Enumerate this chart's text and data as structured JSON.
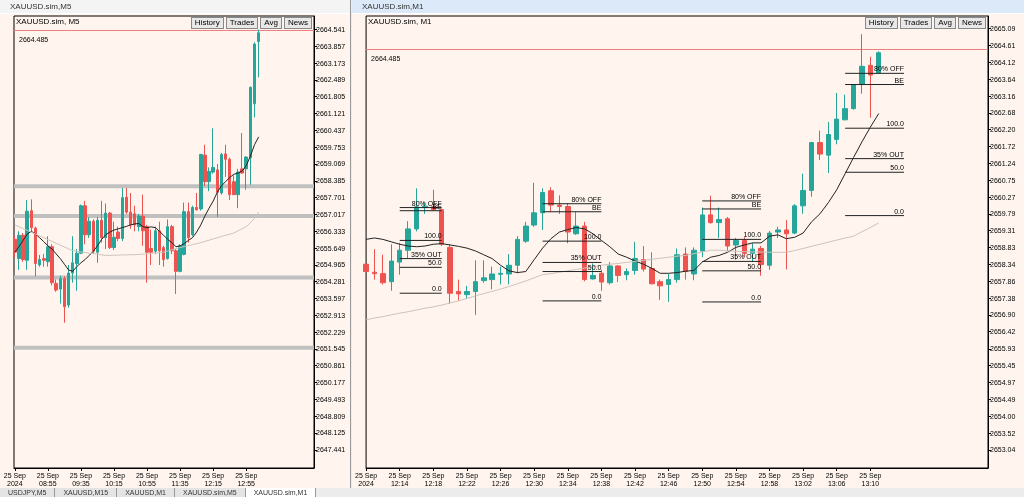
{
  "chart_data": [
    {
      "type": "candlestick",
      "title": "XAUUSD.sim,M5",
      "subtitle": "XAUUSD.sim, M5",
      "x": [
        "2024-09-25T08:15",
        "2024-09-25T08:20",
        "2024-09-25T08:25",
        "2024-09-25T08:30",
        "2024-09-25T08:35",
        "2024-09-25T08:40",
        "2024-09-25T08:45",
        "2024-09-25T08:50",
        "2024-09-25T08:55",
        "2024-09-25T09:00",
        "2024-09-25T09:05",
        "2024-09-25T09:10",
        "2024-09-25T09:15",
        "2024-09-25T09:20",
        "2024-09-25T09:25",
        "2024-09-25T09:30",
        "2024-09-25T09:35",
        "2024-09-25T09:40",
        "2024-09-25T09:45",
        "2024-09-25T09:50",
        "2024-09-25T09:55",
        "2024-09-25T10:00",
        "2024-09-25T10:05",
        "2024-09-25T10:10",
        "2024-09-25T10:15",
        "2024-09-25T10:20",
        "2024-09-25T10:25",
        "2024-09-25T10:30",
        "2024-09-25T10:35",
        "2024-09-25T10:40",
        "2024-09-25T10:45",
        "2024-09-25T10:50",
        "2024-09-25T10:55",
        "2024-09-25T11:00",
        "2024-09-25T11:05",
        "2024-09-25T11:10",
        "2024-09-25T11:15",
        "2024-09-25T11:20",
        "2024-09-25T11:25",
        "2024-09-25T11:30",
        "2024-09-25T11:35",
        "2024-09-25T11:40",
        "2024-09-25T11:45",
        "2024-09-25T11:50",
        "2024-09-25T11:55",
        "2024-09-25T12:00",
        "2024-09-25T12:05",
        "2024-09-25T12:10",
        "2024-09-25T12:15",
        "2024-09-25T12:20",
        "2024-09-25T12:25",
        "2024-09-25T12:30",
        "2024-09-25T12:35",
        "2024-09-25T12:40",
        "2024-09-25T12:45",
        "2024-09-25T12:50",
        "2024-09-25T12:55",
        "2024-09-25T13:00",
        "2024-09-25T13:05",
        "2024-09-25T13:10"
      ],
      "ohlc": [
        [
          2656.0,
          2656.13,
          2655.28,
          2655.48
        ],
        [
          2655.22,
          2656.33,
          2654.76,
          2656.17
        ],
        [
          2656.17,
          2656.26,
          2655.09,
          2655.18
        ],
        [
          2655.15,
          2657.6,
          2654.76,
          2657.15
        ],
        [
          2657.17,
          2657.63,
          2656.33,
          2656.48
        ],
        [
          2656.46,
          2656.52,
          2654.5,
          2655.02
        ],
        [
          2654.96,
          2655.37,
          2654.89,
          2655.18
        ],
        [
          2655.22,
          2655.41,
          2654.89,
          2655.15
        ],
        [
          2655.09,
          2656.13,
          2654.89,
          2655.7
        ],
        [
          2655.7,
          2655.8,
          2654.13,
          2654.24
        ],
        [
          2654.21,
          2654.37,
          2653.87,
          2653.94
        ],
        [
          2653.98,
          2654.53,
          2653.39,
          2654.4
        ],
        [
          2654.4,
          2654.5,
          2652.61,
          2653.26
        ],
        [
          2653.33,
          2654.96,
          2653.22,
          2654.63
        ],
        [
          2654.63,
          2656.13,
          2654.24,
          2655.05
        ],
        [
          2655.02,
          2655.61,
          2653.91,
          2655.44
        ],
        [
          2655.44,
          2657.42,
          2655.41,
          2657.37
        ],
        [
          2657.37,
          2657.57,
          2655.8,
          2656.19
        ],
        [
          2656.19,
          2656.91,
          2656.06,
          2656.74
        ],
        [
          2656.74,
          2656.82,
          2655.41,
          2655.52
        ],
        [
          2655.48,
          2656.91,
          2655.05,
          2656.78
        ],
        [
          2656.78,
          2657.57,
          2655.87,
          2656.07
        ],
        [
          2656.07,
          2657.46,
          2655.61,
          2657.07
        ],
        [
          2657.07,
          2657.11,
          2655.61,
          2655.67
        ],
        [
          2655.67,
          2656.72,
          2655.57,
          2656.09
        ],
        [
          2656.3,
          2656.52,
          2655.93,
          2656.04
        ],
        [
          2656.04,
          2658.09,
          2655.93,
          2657.7
        ],
        [
          2657.72,
          2658.09,
          2657.04,
          2657.11
        ],
        [
          2657.11,
          2657.89,
          2656.43,
          2656.59
        ],
        [
          2657.04,
          2657.37,
          2656.33,
          2656.59
        ],
        [
          2656.52,
          2657.04,
          2656.33,
          2656.95
        ],
        [
          2656.95,
          2657.82,
          2655.74,
          2656.35
        ],
        [
          2656.52,
          2656.59,
          2654.24,
          2655.48
        ],
        [
          2655.63,
          2656.39,
          2654.96,
          2655.48
        ],
        [
          2655.52,
          2656.52,
          2655.41,
          2656.35
        ],
        [
          2656.35,
          2656.72,
          2654.96,
          2655.54
        ],
        [
          2655.67,
          2655.74,
          2654.89,
          2655.18
        ],
        [
          2655.22,
          2656.81,
          2655.18,
          2656.52
        ],
        [
          2656.52,
          2656.59,
          2655.41,
          2655.54
        ],
        [
          2655.54,
          2655.61,
          2653.78,
          2654.7
        ],
        [
          2654.7,
          2655.8,
          2654.66,
          2655.74
        ],
        [
          2655.39,
          2657.5,
          2655.35,
          2657.13
        ],
        [
          2657.13,
          2657.5,
          2655.87,
          2656.07
        ],
        [
          2656.19,
          2657.37,
          2656.13,
          2657.3
        ],
        [
          2657.3,
          2657.89,
          2657.17,
          2657.21
        ],
        [
          2657.24,
          2659.48,
          2657.17,
          2659.46
        ],
        [
          2659.43,
          2659.85,
          2658.18,
          2658.35
        ],
        [
          2658.35,
          2658.93,
          2657.96,
          2658.77
        ],
        [
          2658.74,
          2660.52,
          2658.67,
          2658.93
        ],
        [
          2658.83,
          2659.07,
          2656.91,
          2657.92
        ],
        [
          2657.89,
          2659.52,
          2657.82,
          2659.46
        ],
        [
          2659.48,
          2659.85,
          2658.54,
          2659.26
        ],
        [
          2659.26,
          2659.33,
          2657.6,
          2657.82
        ],
        [
          2658.35,
          2658.61,
          2657.8,
          2657.82
        ],
        [
          2657.82,
          2658.87,
          2657.27,
          2658.74
        ],
        [
          2658.87,
          2660.33,
          2658.67,
          2658.7
        ],
        [
          2658.87,
          2659.39,
          2658.02,
          2659.35
        ],
        [
          2659.32,
          2662.22,
          2658.22,
          2662.19
        ],
        [
          2661.52,
          2664.02,
          2660.96,
          2663.95
        ],
        [
          2664.05,
          2664.54,
          2662.59,
          2664.41
        ]
      ],
      "series": [
        {
          "type": "line",
          "color": "#222222",
          "values": [
            2655.48,
            2655.7,
            2655.96,
            2656.22,
            2656.33,
            2656.22,
            2656.07,
            2655.91,
            2655.74,
            2655.61,
            2655.41,
            2655.22,
            2654.99,
            2654.76,
            2654.7,
            2654.89,
            2655.05,
            2655.18,
            2655.35,
            2655.52,
            2655.74,
            2656.0,
            2656.19,
            2656.3,
            2656.38,
            2656.43,
            2656.48,
            2656.53,
            2656.59,
            2656.63,
            2656.65,
            2656.52,
            2656.48,
            2656.51,
            2656.48,
            2656.33,
            2656.17,
            2656.0,
            2655.87,
            2655.7,
            2655.74,
            2655.83,
            2655.96,
            2656.07,
            2656.3,
            2656.59,
            2656.95,
            2657.27,
            2657.56,
            2657.92,
            2658.18,
            2658.35,
            2658.52,
            2658.65,
            2658.7,
            2658.78,
            2659.0,
            2659.39,
            2659.85,
            2660.17
          ]
        },
        {
          "type": "line",
          "color": "#cdc3bd",
          "values": [
            2656.59,
            2656.52,
            2656.44,
            2656.37,
            2656.29,
            2656.22,
            2656.14,
            2656.07,
            2655.99,
            2655.92,
            2655.84,
            2655.77,
            2655.69,
            2655.62,
            2655.54,
            2655.52,
            2655.49,
            2655.47,
            2655.44,
            2655.42,
            2655.4,
            2655.37,
            2655.35,
            2655.35,
            2655.36,
            2655.36,
            2655.37,
            2655.37,
            2655.38,
            2655.38,
            2655.39,
            2655.4,
            2655.42,
            2655.43,
            2655.45,
            2655.46,
            2655.48,
            2655.53,
            2655.58,
            2655.62,
            2655.67,
            2655.71,
            2655.75,
            2655.79,
            2655.83,
            2655.87,
            2655.92,
            2655.97,
            2656.02,
            2656.07,
            2656.12,
            2656.17,
            2656.21,
            2656.26,
            2656.35,
            2656.43,
            2656.52,
            2656.68,
            2656.85,
            2657.11
          ]
        }
      ],
      "xlim": [
        "2024-09-25T08:14",
        "2024-09-25T14:17"
      ],
      "xticks": [
        {
          "value": "2024-09-25T08:15",
          "label": "25 Sep 2024"
        },
        {
          "value": "2024-09-25T08:55",
          "label": "25 Sep 08:55"
        },
        {
          "value": "2024-09-25T09:35",
          "label": "25 Sep 09:35"
        },
        {
          "value": "2024-09-25T10:15",
          "label": "25 Sep 10:15"
        },
        {
          "value": "2024-09-25T10:55",
          "label": "25 Sep 10:55"
        },
        {
          "value": "2024-09-25T11:35",
          "label": "25 Sep 11:35"
        },
        {
          "value": "2024-09-25T12:15",
          "label": "25 Sep 12:15"
        },
        {
          "value": "2024-09-25T12:55",
          "label": "25 Sep 12:55"
        }
      ],
      "ylim": [
        2646.7,
        2665.09
      ],
      "yticks": [
        2647.441,
        2648.125,
        2648.809,
        2649.493,
        2650.177,
        2650.861,
        2651.545,
        2652.229,
        2652.913,
        2653.597,
        2654.281,
        2654.965,
        2655.649,
        2656.333,
        2657.017,
        2657.701,
        2658.385,
        2659.069,
        2659.753,
        2660.437,
        2661.121,
        2661.805,
        2662.489,
        2663.173,
        2663.857,
        2664.541
      ],
      "ref_lines": [
        {
          "axis": "y",
          "value": 2664.485,
          "label": "2664.485",
          "color": "#f08080"
        }
      ],
      "bands": [
        {
          "axis": "y",
          "from": 2658.08,
          "to": 2658.24,
          "color": "#c0c0c0"
        },
        {
          "axis": "y",
          "from": 2656.87,
          "to": 2657.03,
          "color": "#c0c0c0"
        },
        {
          "axis": "y",
          "from": 2654.37,
          "to": 2654.53,
          "color": "#c0c0c0"
        },
        {
          "axis": "y",
          "from": 2651.51,
          "to": 2651.67,
          "color": "#c0c0c0"
        }
      ],
      "annotations": [
        "History",
        "Trades",
        "Avg",
        "News"
      ],
      "grid": false,
      "marker": "none",
      "line_style": "solid"
    },
    {
      "type": "candlestick",
      "title": "XAUUSD.sim,M1",
      "subtitle": "XAUUSD.sim, M1",
      "x": [
        "2024-09-25T12:10",
        "2024-09-25T12:11",
        "2024-09-25T12:12",
        "2024-09-25T12:13",
        "2024-09-25T12:14",
        "2024-09-25T12:15",
        "2024-09-25T12:16",
        "2024-09-25T12:17",
        "2024-09-25T12:18",
        "2024-09-25T12:19",
        "2024-09-25T12:20",
        "2024-09-25T12:21",
        "2024-09-25T12:22",
        "2024-09-25T12:23",
        "2024-09-25T12:24",
        "2024-09-25T12:25",
        "2024-09-25T12:26",
        "2024-09-25T12:27",
        "2024-09-25T12:28",
        "2024-09-25T12:29",
        "2024-09-25T12:30",
        "2024-09-25T12:31",
        "2024-09-25T12:32",
        "2024-09-25T12:33",
        "2024-09-25T12:34",
        "2024-09-25T12:35",
        "2024-09-25T12:36",
        "2024-09-25T12:37",
        "2024-09-25T12:38",
        "2024-09-25T12:39",
        "2024-09-25T12:40",
        "2024-09-25T12:41",
        "2024-09-25T12:42",
        "2024-09-25T12:43",
        "2024-09-25T12:44",
        "2024-09-25T12:45",
        "2024-09-25T12:46",
        "2024-09-25T12:47",
        "2024-09-25T12:48",
        "2024-09-25T12:49",
        "2024-09-25T12:50",
        "2024-09-25T12:51",
        "2024-09-25T12:52",
        "2024-09-25T12:53",
        "2024-09-25T12:54",
        "2024-09-25T12:55",
        "2024-09-25T12:56",
        "2024-09-25T12:57",
        "2024-09-25T12:58",
        "2024-09-25T12:59",
        "2024-09-25T13:00",
        "2024-09-25T13:01",
        "2024-09-25T13:02",
        "2024-09-25T13:03",
        "2024-09-25T13:04",
        "2024-09-25T13:05",
        "2024-09-25T13:06",
        "2024-09-25T13:07",
        "2024-09-25T13:08",
        "2024-09-25T13:09",
        "2024-09-25T13:10",
        "2024-09-25T13:11"
      ],
      "ohlc": [
        [
          2658.35,
          2658.35,
          2658.14,
          2658.14
        ],
        [
          2658.12,
          2658.78,
          2657.91,
          2658.08
        ],
        [
          2658.08,
          2658.62,
          2657.77,
          2657.82
        ],
        [
          2657.85,
          2658.92,
          2657.59,
          2658.44
        ],
        [
          2658.41,
          2658.96,
          2658.05,
          2658.75
        ],
        [
          2658.75,
          2659.58,
          2658.51,
          2659.36
        ],
        [
          2659.36,
          2660.52,
          2659.29,
          2659.99
        ],
        [
          2659.97,
          2660.11,
          2659.79,
          2660.01
        ],
        [
          2659.99,
          2660.48,
          2659.88,
          2659.91
        ],
        [
          2659.91,
          2659.93,
          2658.87,
          2658.92
        ],
        [
          2658.83,
          2658.92,
          2657.22,
          2657.52
        ],
        [
          2657.57,
          2657.91,
          2657.31,
          2657.5
        ],
        [
          2657.48,
          2657.73,
          2657.36,
          2657.57
        ],
        [
          2657.57,
          2658.46,
          2656.9,
          2657.85
        ],
        [
          2657.88,
          2658.46,
          2657.82,
          2657.96
        ],
        [
          2657.91,
          2658.28,
          2657.63,
          2658.07
        ],
        [
          2658.06,
          2658.28,
          2657.77,
          2658.09
        ],
        [
          2658.07,
          2658.64,
          2657.77,
          2658.32
        ],
        [
          2658.32,
          2659.15,
          2658.09,
          2659.06
        ],
        [
          2659.01,
          2659.56,
          2658.96,
          2659.44
        ],
        [
          2659.47,
          2660.68,
          2659.42,
          2659.82
        ],
        [
          2659.82,
          2660.52,
          2659.33,
          2660.4
        ],
        [
          2660.45,
          2660.55,
          2659.84,
          2660.04
        ],
        [
          2660.04,
          2660.32,
          2659.79,
          2660.0
        ],
        [
          2660.0,
          2660.09,
          2658.95,
          2659.27
        ],
        [
          2659.22,
          2659.84,
          2659.19,
          2659.44
        ],
        [
          2659.44,
          2659.56,
          2657.86,
          2657.91
        ],
        [
          2657.93,
          2658.37,
          2657.91,
          2658.03
        ],
        [
          2658.09,
          2658.19,
          2657.59,
          2657.84
        ],
        [
          2657.82,
          2658.41,
          2657.77,
          2658.3
        ],
        [
          2658.3,
          2658.32,
          2657.84,
          2658.03
        ],
        [
          2658.05,
          2658.23,
          2657.89,
          2658.14
        ],
        [
          2658.17,
          2658.99,
          2658.05,
          2658.51
        ],
        [
          2658.48,
          2658.87,
          2658.14,
          2658.21
        ],
        [
          2658.23,
          2658.69,
          2657.77,
          2657.79
        ],
        [
          2657.85,
          2657.91,
          2657.33,
          2657.73
        ],
        [
          2657.77,
          2658.07,
          2657.27,
          2657.91
        ],
        [
          2657.91,
          2658.8,
          2657.82,
          2658.62
        ],
        [
          2658.64,
          2658.83,
          2657.91,
          2658.14
        ],
        [
          2658.07,
          2658.83,
          2657.89,
          2658.75
        ],
        [
          2658.73,
          2659.97,
          2658.55,
          2659.76
        ],
        [
          2659.76,
          2660.31,
          2659.51,
          2659.54
        ],
        [
          2659.54,
          2659.97,
          2659.1,
          2659.63
        ],
        [
          2659.65,
          2659.7,
          2658.73,
          2658.87
        ],
        [
          2658.9,
          2659.1,
          2658.48,
          2659.03
        ],
        [
          2659.03,
          2659.12,
          2658.55,
          2658.66
        ],
        [
          2658.66,
          2658.96,
          2658.41,
          2658.78
        ],
        [
          2658.8,
          2658.87,
          2658.02,
          2658.34
        ],
        [
          2658.32,
          2659.3,
          2658.19,
          2659.24
        ],
        [
          2659.27,
          2659.42,
          2659.1,
          2659.33
        ],
        [
          2659.33,
          2659.61,
          2658.2,
          2659.22
        ],
        [
          2659.24,
          2660.07,
          2659.21,
          2660.02
        ],
        [
          2660.02,
          2660.94,
          2659.79,
          2660.46
        ],
        [
          2660.46,
          2661.85,
          2660.28,
          2661.83
        ],
        [
          2661.83,
          2662.17,
          2661.33,
          2661.5
        ],
        [
          2661.47,
          2662.42,
          2660.96,
          2662.06
        ],
        [
          2661.92,
          2663.25,
          2661.78,
          2662.5
        ],
        [
          2662.48,
          2663.2,
          2662.47,
          2662.8
        ],
        [
          2662.8,
          2663.5,
          2662.77,
          2663.49
        ],
        [
          2663.49,
          2664.93,
          2663.23,
          2664.01
        ],
        [
          2664.04,
          2664.28,
          2662.54,
          2663.76
        ],
        [
          2663.82,
          2664.44,
          2663.8,
          2664.4
        ]
      ],
      "series": [
        {
          "type": "line",
          "color": "#222222",
          "values": [
            2659.06,
            2659.1,
            2659.06,
            2658.99,
            2658.92,
            2658.87,
            2658.85,
            2658.87,
            2658.92,
            2658.94,
            2658.9,
            2658.86,
            2658.81,
            2658.73,
            2658.62,
            2658.51,
            2658.32,
            2658.16,
            2658.11,
            2658.14,
            2658.48,
            2658.81,
            2659.08,
            2659.27,
            2659.34,
            2659.4,
            2659.36,
            2659.22,
            2659.03,
            2658.85,
            2658.64,
            2658.55,
            2658.44,
            2658.35,
            2658.23,
            2658.09,
            2658.09,
            2658.11,
            2658.15,
            2658.17,
            2658.41,
            2658.55,
            2658.6,
            2658.69,
            2658.83,
            2658.9,
            2658.96,
            2658.96,
            2659.15,
            2659.19,
            2659.08,
            2659.12,
            2659.24,
            2659.56,
            2659.79,
            2660.11,
            2660.48,
            2660.94,
            2661.4,
            2661.85,
            2662.27,
            2662.66
          ]
        },
        {
          "type": "line",
          "color": "#cdc3bd",
          "values": [
            2656.76,
            2656.81,
            2656.85,
            2656.9,
            2656.95,
            2656.99,
            2657.04,
            2657.09,
            2657.13,
            2657.18,
            2657.24,
            2657.3,
            2657.37,
            2657.44,
            2657.51,
            2657.57,
            2657.64,
            2657.71,
            2657.79,
            2657.87,
            2657.96,
            2658.05,
            2658.08,
            2658.12,
            2658.16,
            2658.2,
            2658.24,
            2658.28,
            2658.32,
            2658.35,
            2658.37,
            2658.4,
            2658.43,
            2658.46,
            2658.49,
            2658.52,
            2658.55,
            2658.58,
            2658.6,
            2658.65,
            2658.7,
            2658.75,
            2658.75,
            2658.73,
            2658.72,
            2658.71,
            2658.7,
            2658.7,
            2658.69,
            2658.69,
            2658.69,
            2658.74,
            2658.8,
            2658.86,
            2658.92,
            2658.98,
            2659.04,
            2659.1,
            2659.15,
            2659.28,
            2659.4,
            2659.53
          ]
        },
        {
          "type": "line",
          "color": "#222222",
          "x": [
            "2024-09-25T12:14",
            "2024-09-25T12:19"
          ],
          "values": [
            2659.97,
            2659.97
          ]
        },
        {
          "type": "line",
          "color": "#222222",
          "x": [
            "2024-09-25T12:14",
            "2024-09-25T12:19"
          ],
          "values": [
            2659.88,
            2659.88
          ]
        },
        {
          "type": "line",
          "color": "#222222",
          "x": [
            "2024-09-25T12:14",
            "2024-09-25T12:19"
          ],
          "values": [
            2659.03,
            2659.03
          ]
        },
        {
          "type": "line",
          "color": "#222222",
          "x": [
            "2024-09-25T12:14",
            "2024-09-25T12:19"
          ],
          "values": [
            2658.51,
            2658.51
          ]
        },
        {
          "type": "line",
          "color": "#222222",
          "x": [
            "2024-09-25T12:14",
            "2024-09-25T12:19"
          ],
          "values": [
            2658.26,
            2658.26
          ]
        },
        {
          "type": "line",
          "color": "#222222",
          "x": [
            "2024-09-25T12:14",
            "2024-09-25T12:19"
          ],
          "values": [
            2657.52,
            2657.52
          ]
        },
        {
          "type": "line",
          "color": "#222222",
          "x": [
            "2024-09-25T12:31",
            "2024-09-25T12:38"
          ],
          "values": [
            2660.08,
            2660.08
          ]
        },
        {
          "type": "line",
          "color": "#222222",
          "x": [
            "2024-09-25T12:31",
            "2024-09-25T12:38"
          ],
          "values": [
            2659.85,
            2659.85
          ]
        },
        {
          "type": "line",
          "color": "#222222",
          "x": [
            "2024-09-25T12:31",
            "2024-09-25T12:38"
          ],
          "values": [
            2659.01,
            2659.01
          ]
        },
        {
          "type": "line",
          "color": "#222222",
          "x": [
            "2024-09-25T12:31",
            "2024-09-25T12:38"
          ],
          "values": [
            2658.4,
            2658.4
          ]
        },
        {
          "type": "line",
          "color": "#222222",
          "x": [
            "2024-09-25T12:31",
            "2024-09-25T12:38"
          ],
          "values": [
            2658.14,
            2658.14
          ]
        },
        {
          "type": "line",
          "color": "#222222",
          "x": [
            "2024-09-25T12:31",
            "2024-09-25T12:38"
          ],
          "values": [
            2657.3,
            2657.3
          ]
        },
        {
          "type": "line",
          "color": "#222222",
          "x": [
            "2024-09-25T12:50",
            "2024-09-25T12:57"
          ],
          "values": [
            2660.16,
            2660.16
          ]
        },
        {
          "type": "line",
          "color": "#222222",
          "x": [
            "2024-09-25T12:50",
            "2024-09-25T12:57"
          ],
          "values": [
            2659.93,
            2659.93
          ]
        },
        {
          "type": "line",
          "color": "#222222",
          "x": [
            "2024-09-25T12:50",
            "2024-09-25T12:57"
          ],
          "values": [
            2659.06,
            2659.06
          ]
        },
        {
          "type": "line",
          "color": "#222222",
          "x": [
            "2024-09-25T12:50",
            "2024-09-25T12:57"
          ],
          "values": [
            2658.43,
            2658.43
          ]
        },
        {
          "type": "line",
          "color": "#222222",
          "x": [
            "2024-09-25T12:50",
            "2024-09-25T12:57"
          ],
          "values": [
            2658.16,
            2658.16
          ]
        },
        {
          "type": "line",
          "color": "#222222",
          "x": [
            "2024-09-25T12:50",
            "2024-09-25T12:57"
          ],
          "values": [
            2657.27,
            2657.27
          ]
        },
        {
          "type": "line",
          "color": "#222222",
          "x": [
            "2024-09-25T13:07",
            "2024-09-25T13:14"
          ],
          "values": [
            2663.81,
            2663.81
          ]
        },
        {
          "type": "line",
          "color": "#222222",
          "x": [
            "2024-09-25T13:07",
            "2024-09-25T13:14"
          ],
          "values": [
            2663.49,
            2663.49
          ]
        },
        {
          "type": "line",
          "color": "#222222",
          "x": [
            "2024-09-25T13:07",
            "2024-09-25T13:14"
          ],
          "values": [
            2662.24,
            2662.24
          ]
        },
        {
          "type": "line",
          "color": "#222222",
          "x": [
            "2024-09-25T13:07",
            "2024-09-25T13:14"
          ],
          "values": [
            2661.37,
            2661.37
          ]
        },
        {
          "type": "line",
          "color": "#222222",
          "x": [
            "2024-09-25T13:07",
            "2024-09-25T13:14"
          ],
          "values": [
            2660.98,
            2660.98
          ]
        },
        {
          "type": "line",
          "color": "#222222",
          "x": [
            "2024-09-25T13:07",
            "2024-09-25T13:14"
          ],
          "values": [
            2659.74,
            2659.74
          ]
        }
      ],
      "xlim": [
        "2024-09-25T12:10",
        "2024-09-25T13:24"
      ],
      "xticks": [
        {
          "value": "2024-09-25T12:10",
          "label": "25 Sep 2024"
        },
        {
          "value": "2024-09-25T12:14",
          "label": "25 Sep 12:14"
        },
        {
          "value": "2024-09-25T12:18",
          "label": "25 Sep 12:18"
        },
        {
          "value": "2024-09-25T12:22",
          "label": "25 Sep 12:22"
        },
        {
          "value": "2024-09-25T12:26",
          "label": "25 Sep 12:26"
        },
        {
          "value": "2024-09-25T12:30",
          "label": "25 Sep 12:30"
        },
        {
          "value": "2024-09-25T12:34",
          "label": "25 Sep 12:34"
        },
        {
          "value": "2024-09-25T12:38",
          "label": "25 Sep 12:38"
        },
        {
          "value": "2024-09-25T12:42",
          "label": "25 Sep 12:42"
        },
        {
          "value": "2024-09-25T12:46",
          "label": "25 Sep 12:46"
        },
        {
          "value": "2024-09-25T12:50",
          "label": "25 Sep 12:50"
        },
        {
          "value": "2024-09-25T12:54",
          "label": "25 Sep 12:54"
        },
        {
          "value": "2024-09-25T12:58",
          "label": "25 Sep 12:58"
        },
        {
          "value": "2024-09-25T13:02",
          "label": "25 Sep 13:02"
        },
        {
          "value": "2024-09-25T13:06",
          "label": "25 Sep 13:06"
        },
        {
          "value": "2024-09-25T13:10",
          "label": "25 Sep 13:10"
        }
      ],
      "ylim": [
        2652.52,
        2665.45
      ],
      "yticks": [
        2653.04,
        2653.52,
        {
          "value": 2654,
          "label": "2654.00"
        },
        2654.49,
        2654.97,
        2655.45,
        2655.93,
        2656.42,
        {
          "value": 2656.9,
          "label": "2656.90"
        },
        2657.38,
        2657.86,
        2658.34,
        2658.83,
        2659.31,
        2659.79,
        2660.27,
        2660.75,
        2661.24,
        2661.72,
        {
          "value": 2662.2,
          "label": "2662.20"
        },
        2662.68,
        2663.16,
        2663.64,
        2664.12,
        2664.61,
        2665.09
      ],
      "ref_lines": [
        {
          "axis": "y",
          "value": 2664.485,
          "label": "2664.485",
          "color": "#f08080"
        }
      ],
      "annotations": [
        "History",
        "Trades",
        "Avg",
        "News",
        {
          "text": "80% OFF",
          "x": "2024-09-25T12:19",
          "y": 2659.97
        },
        {
          "text": "BE",
          "x": "2024-09-25T12:19",
          "y": 2659.88
        },
        {
          "text": "100.0",
          "x": "2024-09-25T12:19",
          "y": 2659.03
        },
        {
          "text": "35% OUT",
          "x": "2024-09-25T12:19",
          "y": 2658.51
        },
        {
          "text": "50.0",
          "x": "2024-09-25T12:19",
          "y": 2658.26
        },
        {
          "text": "0.0",
          "x": "2024-09-25T12:19",
          "y": 2657.52
        },
        {
          "text": "80% OFF",
          "x": "2024-09-25T12:38",
          "y": 2660.08
        },
        {
          "text": "BE",
          "x": "2024-09-25T12:38",
          "y": 2659.85
        },
        {
          "text": "100.0",
          "x": "2024-09-25T12:38",
          "y": 2659.01
        },
        {
          "text": "35% OUT",
          "x": "2024-09-25T12:38",
          "y": 2658.4
        },
        {
          "text": "50.0",
          "x": "2024-09-25T12:38",
          "y": 2658.14
        },
        {
          "text": "0.0",
          "x": "2024-09-25T12:38",
          "y": 2657.3
        },
        {
          "text": "80% OFF",
          "x": "2024-09-25T12:57",
          "y": 2660.16
        },
        {
          "text": "BE",
          "x": "2024-09-25T12:57",
          "y": 2659.93
        },
        {
          "text": "100.0",
          "x": "2024-09-25T12:57",
          "y": 2659.06
        },
        {
          "text": "35% OUT",
          "x": "2024-09-25T12:57",
          "y": 2658.43
        },
        {
          "text": "50.0",
          "x": "2024-09-25T12:57",
          "y": 2658.16
        },
        {
          "text": "0.0",
          "x": "2024-09-25T12:57",
          "y": 2657.27
        },
        {
          "text": "80% OFF",
          "x": "2024-09-25T13:14",
          "y": 2663.81
        },
        {
          "text": "BE",
          "x": "2024-09-25T13:14",
          "y": 2663.49
        },
        {
          "text": "100.0",
          "x": "2024-09-25T13:14",
          "y": 2662.24
        },
        {
          "text": "35% OUT",
          "x": "2024-09-25T13:14",
          "y": 2661.37
        },
        {
          "text": "50.0",
          "x": "2024-09-25T13:14",
          "y": 2660.98
        },
        {
          "text": "0.0",
          "x": "2024-09-25T13:14",
          "y": 2659.74
        },
        "USDJPY,M5",
        "XAUUSD,M15",
        "XAUUSD,M1",
        "XAUUSD.sim,M5",
        "XAUUSD.sim,M1"
      ],
      "grid": false,
      "marker": "none",
      "line_style": "solid"
    }
  ]
}
